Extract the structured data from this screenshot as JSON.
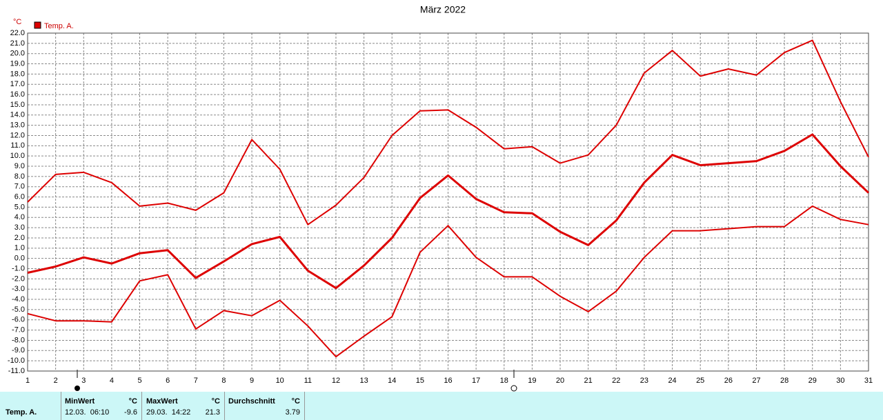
{
  "chart_data": {
    "type": "line",
    "title": "März 2022",
    "y_label": "°C",
    "legend": "Temp. A.",
    "legend_color": "#dd0000",
    "x": [
      1,
      2,
      3,
      4,
      5,
      6,
      7,
      8,
      9,
      10,
      11,
      12,
      13,
      14,
      15,
      16,
      17,
      18,
      19,
      20,
      21,
      22,
      23,
      24,
      25,
      26,
      27,
      28,
      29,
      30,
      31
    ],
    "xlim": [
      1,
      31
    ],
    "xticks": [
      1,
      2,
      3,
      4,
      5,
      6,
      7,
      8,
      9,
      10,
      11,
      12,
      13,
      14,
      15,
      16,
      17,
      18,
      19,
      20,
      21,
      22,
      23,
      24,
      25,
      26,
      27,
      28,
      29,
      30,
      31
    ],
    "ylim": [
      -11,
      22
    ],
    "yticks": [
      {
        "value": 22,
        "label": "22.0"
      },
      {
        "value": 21,
        "label": "21.0"
      },
      {
        "value": 20,
        "label": "20.0"
      },
      {
        "value": 19,
        "label": "19.0"
      },
      {
        "value": 18,
        "label": "18.0"
      },
      {
        "value": 17,
        "label": "17.0"
      },
      {
        "value": 16,
        "label": "16.0"
      },
      {
        "value": 15,
        "label": "15.0"
      },
      {
        "value": 14,
        "label": "14.0"
      },
      {
        "value": 13,
        "label": "13.0"
      },
      {
        "value": 12,
        "label": "12.0"
      },
      {
        "value": 11,
        "label": "11.0"
      },
      {
        "value": 10,
        "label": "10.0"
      },
      {
        "value": 9,
        "label": "9.0"
      },
      {
        "value": 8,
        "label": "8.0"
      },
      {
        "value": 7,
        "label": "7.0"
      },
      {
        "value": 6,
        "label": "6.0"
      },
      {
        "value": 5,
        "label": "5.0"
      },
      {
        "value": 4,
        "label": "4.0"
      },
      {
        "value": 3,
        "label": "3.0"
      },
      {
        "value": 2,
        "label": "2.0"
      },
      {
        "value": 1,
        "label": "1.0"
      },
      {
        "value": 0,
        "label": "0.0"
      },
      {
        "value": -1,
        "label": "-1.0"
      },
      {
        "value": -2,
        "label": "-2.0"
      },
      {
        "value": -3,
        "label": "-3.0"
      },
      {
        "value": -4,
        "label": "-4.0"
      },
      {
        "value": -5,
        "label": "-5.0"
      },
      {
        "value": -6,
        "label": "-6.0"
      },
      {
        "value": -7,
        "label": "-7.0"
      },
      {
        "value": -8,
        "label": "-8.0"
      },
      {
        "value": -9,
        "label": "-9.0"
      },
      {
        "value": -10,
        "label": "-10.0"
      },
      {
        "value": -11,
        "label": "-11.0"
      }
    ],
    "grid": true,
    "series": [
      {
        "color": "#dd0000",
        "values": [
          5.5,
          8.2,
          8.4,
          7.4,
          5.1,
          5.4,
          4.7,
          6.4,
          11.6,
          8.7,
          3.3,
          5.2,
          7.9,
          12.0,
          14.4,
          14.5,
          12.8,
          10.7,
          10.9,
          9.3,
          10.1,
          13.0,
          18.1,
          20.3,
          17.8,
          18.5,
          17.9,
          20.1,
          21.3,
          15.3,
          9.9
        ]
      },
      {
        "color": "#dd0000",
        "values": [
          -1.4,
          -0.8,
          0.1,
          -0.5,
          0.5,
          0.8,
          -1.9,
          -0.3,
          1.4,
          2.1,
          -1.2,
          -2.9,
          -0.7,
          2.0,
          5.9,
          8.1,
          5.8,
          4.5,
          4.4,
          2.6,
          1.3,
          3.7,
          7.4,
          10.1,
          9.1,
          9.3,
          9.5,
          10.5,
          12.1,
          9.0,
          6.4
        ]
      },
      {
        "color": "#dd0000",
        "values": [
          -5.4,
          -6.1,
          -6.1,
          -6.2,
          -2.2,
          -1.6,
          -6.9,
          -5.1,
          -5.6,
          -4.1,
          -6.6,
          -9.6,
          -7.6,
          -5.7,
          0.6,
          3.2,
          0.1,
          -1.8,
          -1.8,
          -3.7,
          -5.2,
          -3.2,
          0.1,
          2.7,
          2.7,
          2.9,
          3.1,
          3.1,
          5.1,
          3.8,
          3.3
        ]
      }
    ]
  },
  "stats": {
    "row_label": "Temp. A.",
    "min": {
      "title": "MinWert",
      "unit": "°C",
      "time": "12.03.  06:10",
      "value": "-9.6"
    },
    "max": {
      "title": "MaxWert",
      "unit": "°C",
      "time": "29.03.  14:22",
      "value": "21.3"
    },
    "avg": {
      "title": "Durchschnitt",
      "unit": "°C",
      "value": "3.79"
    }
  }
}
